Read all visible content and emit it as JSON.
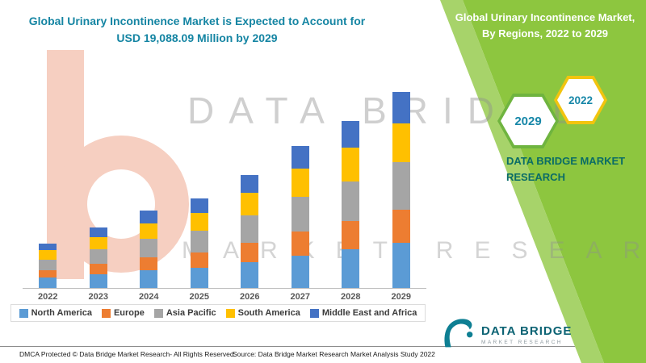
{
  "header": {
    "title": "Global Urinary Incontinence Market is Expected to Account for USD 19,088.09 Million by 2029"
  },
  "panel": {
    "title": "Global Urinary Incontinence Market, By Regions, 2022 to 2029",
    "brand": "DATA BRIDGE MARKET RESEARCH",
    "hexagons": [
      {
        "label": "2029",
        "border": "#6FB43F"
      },
      {
        "label": "2022",
        "border": "#F2C40E"
      }
    ],
    "colors": {
      "main": "#8DC63F",
      "stripe": "#A7D36A"
    }
  },
  "watermark": {
    "line1": "DATA BRIDGE",
    "line2": "MARKET RESEARCH"
  },
  "chart_data": {
    "type": "bar",
    "subtype": "stacked",
    "title": "Global Urinary Incontinence Market, By Regions, 2022 to 2029",
    "categories": [
      "2022",
      "2023",
      "2024",
      "2025",
      "2026",
      "2027",
      "2028",
      "2029"
    ],
    "series": [
      {
        "name": "North America",
        "color": "#5B9BD5",
        "values": [
          1000,
          1360,
          1725,
          2000,
          2530,
          3170,
          3730,
          4390
        ]
      },
      {
        "name": "Europe",
        "color": "#ED7D31",
        "values": [
          740,
          1000,
          1275,
          1480,
          1870,
          2350,
          2750,
          3245
        ]
      },
      {
        "name": "Asia Pacific",
        "color": "#A5A5A5",
        "values": [
          1040,
          1420,
          1800,
          2090,
          2640,
          3310,
          3890,
          4581
        ]
      },
      {
        "name": "South America",
        "color": "#FFC000",
        "values": [
          870,
          1180,
          1500,
          1740,
          2200,
          2760,
          3240,
          3818
        ]
      },
      {
        "name": "Middle East and Africa",
        "color": "#4472C4",
        "values": [
          690,
          940,
          1200,
          1390,
          1760,
          2210,
          2590,
          3054
        ]
      }
    ],
    "totals": [
      4340,
      5900,
      7500,
      8700,
      11000,
      13800,
      16200,
      19088
    ],
    "ylim": [
      0,
      20000
    ],
    "legend_position": "bottom",
    "grid": false
  },
  "logo": {
    "name": "DATA BRIDGE",
    "sub": "MARKET RESEARCH"
  },
  "footer": {
    "left": "DMCA Protected © Data Bridge Market Research- All Rights Reserved.",
    "source": "Source: Data Bridge Market Research Market Analysis Study 2022"
  }
}
